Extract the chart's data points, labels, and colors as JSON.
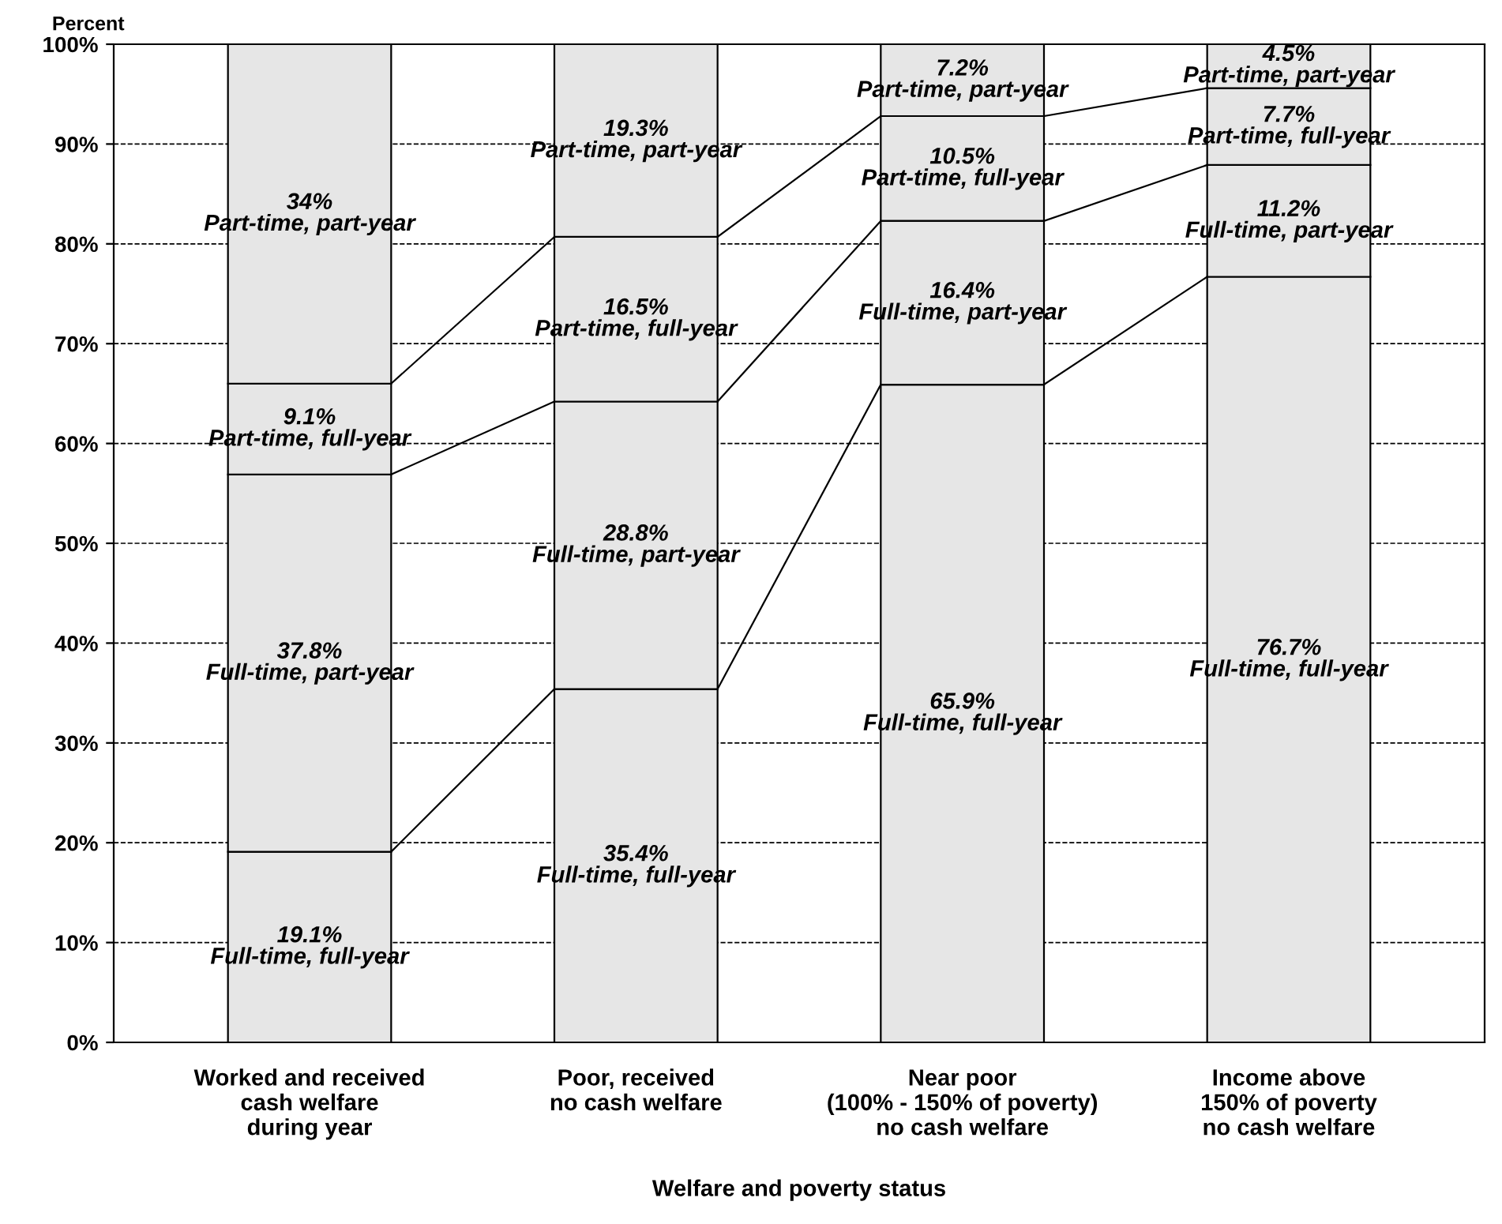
{
  "chart_data": {
    "type": "bar",
    "stacked": true,
    "xlabel": "Welfare and poverty status",
    "ylabel": "Percent",
    "categories": [
      "Worked and received\ncash welfare\nduring year",
      "Poor, received\nno cash welfare",
      "Near poor\n(100% - 150% of poverty)\nno cash welfare",
      "Income above\n150% of poverty\nno cash welfare"
    ],
    "series": [
      {
        "name": "Full-time, full-year",
        "color": "#e6e6e6",
        "values": [
          19.1,
          35.4,
          65.9,
          76.7
        ],
        "value_labels": [
          "19.1%",
          "35.4%",
          "65.9%",
          "76.7%"
        ]
      },
      {
        "name": "Full-time, part-year",
        "color": "#e6e6e6",
        "values": [
          37.8,
          28.8,
          16.4,
          11.2
        ],
        "value_labels": [
          "37.8%",
          "28.8%",
          "16.4%",
          "11.2%"
        ]
      },
      {
        "name": "Part-time, full-year",
        "color": "#e6e6e6",
        "values": [
          9.1,
          16.5,
          10.5,
          7.7
        ],
        "value_labels": [
          "9.1%",
          "16.5%",
          "10.5%",
          "7.7%"
        ]
      },
      {
        "name": "Part-time, part-year",
        "color": "#e6e6e6",
        "values": [
          34,
          19.3,
          7.2,
          4.5
        ],
        "value_labels": [
          "34%",
          "19.3%",
          "7.2%",
          "4.5%"
        ]
      }
    ],
    "ylim": [
      0,
      100
    ],
    "yticks": [
      {
        "value": 0,
        "label": "0%"
      },
      {
        "value": 10,
        "label": "10%"
      },
      {
        "value": 20,
        "label": "20%"
      },
      {
        "value": 30,
        "label": "30%"
      },
      {
        "value": 40,
        "label": "40%"
      },
      {
        "value": 50,
        "label": "50%"
      },
      {
        "value": 60,
        "label": "60%"
      },
      {
        "value": 70,
        "label": "70%"
      },
      {
        "value": 80,
        "label": "80%"
      },
      {
        "value": 90,
        "label": "90%"
      },
      {
        "value": 100,
        "label": "100%"
      }
    ],
    "grid": "y",
    "legend": false
  }
}
